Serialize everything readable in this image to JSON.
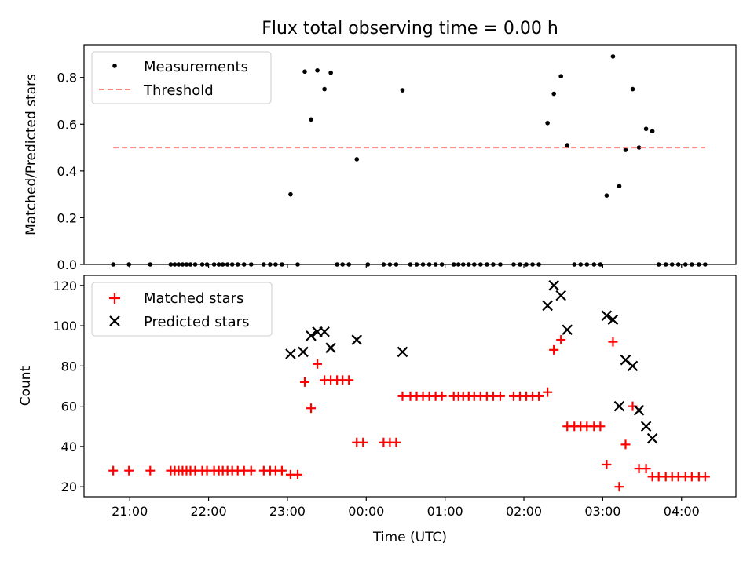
{
  "figure": {
    "title": "Flux total observing time = 0.00 h"
  },
  "chart_data": [
    {
      "type": "scatter",
      "ylabel": "Matched/Predicted stars",
      "xlim": [
        20.42,
        28.69
      ],
      "ylim": [
        0,
        0.94
      ],
      "yticks": [
        0.0,
        0.2,
        0.4,
        0.6,
        0.8
      ],
      "yticklabels": [
        "0.0",
        "0.2",
        "0.4",
        "0.6",
        "0.8"
      ],
      "grid": false,
      "legend_position": "upper-left",
      "series": [
        {
          "name": "Measurements",
          "marker": "dot",
          "color": "#000000",
          "points": [
            [
              20.79,
              0
            ],
            [
              20.99,
              0
            ],
            [
              21.26,
              0
            ],
            [
              21.52,
              0
            ],
            [
              21.57,
              0
            ],
            [
              21.62,
              0
            ],
            [
              21.67,
              0
            ],
            [
              21.72,
              0
            ],
            [
              21.77,
              0
            ],
            [
              21.83,
              0
            ],
            [
              21.92,
              0
            ],
            [
              21.98,
              0
            ],
            [
              22.07,
              0
            ],
            [
              22.13,
              0
            ],
            [
              22.18,
              0
            ],
            [
              22.24,
              0
            ],
            [
              22.3,
              0
            ],
            [
              22.37,
              0
            ],
            [
              22.45,
              0
            ],
            [
              22.54,
              0
            ],
            [
              22.7,
              0
            ],
            [
              22.78,
              0
            ],
            [
              22.85,
              0
            ],
            [
              22.93,
              0
            ],
            [
              23.04,
              0.3
            ],
            [
              23.13,
              0
            ],
            [
              23.22,
              0.825
            ],
            [
              23.3,
              0.62
            ],
            [
              23.38,
              0.83
            ],
            [
              23.47,
              0.75
            ],
            [
              23.55,
              0.82
            ],
            [
              23.63,
              0
            ],
            [
              23.7,
              0
            ],
            [
              23.78,
              0
            ],
            [
              23.88,
              0.45
            ],
            [
              24.02,
              0
            ],
            [
              24.22,
              0
            ],
            [
              24.3,
              0
            ],
            [
              24.38,
              0
            ],
            [
              24.46,
              0.745
            ],
            [
              24.56,
              0
            ],
            [
              24.64,
              0
            ],
            [
              24.72,
              0
            ],
            [
              24.8,
              0
            ],
            [
              24.88,
              0
            ],
            [
              24.96,
              0
            ],
            [
              25.11,
              0
            ],
            [
              25.17,
              0
            ],
            [
              25.23,
              0
            ],
            [
              25.3,
              0
            ],
            [
              25.37,
              0
            ],
            [
              25.45,
              0
            ],
            [
              25.53,
              0
            ],
            [
              25.61,
              0
            ],
            [
              25.7,
              0
            ],
            [
              25.87,
              0
            ],
            [
              25.95,
              0
            ],
            [
              26.03,
              0
            ],
            [
              26.11,
              0
            ],
            [
              26.19,
              0
            ],
            [
              26.3,
              0.605
            ],
            [
              26.38,
              0.73
            ],
            [
              26.47,
              0.805
            ],
            [
              26.55,
              0.51
            ],
            [
              26.64,
              0
            ],
            [
              26.72,
              0
            ],
            [
              26.8,
              0
            ],
            [
              26.89,
              0
            ],
            [
              26.97,
              0
            ],
            [
              27.05,
              0.295
            ],
            [
              27.13,
              0.89
            ],
            [
              27.21,
              0.335
            ],
            [
              27.29,
              0.49
            ],
            [
              27.38,
              0.75
            ],
            [
              27.46,
              0.5
            ],
            [
              27.55,
              0.58
            ],
            [
              27.63,
              0.57
            ],
            [
              27.71,
              0
            ],
            [
              27.8,
              0
            ],
            [
              27.88,
              0
            ],
            [
              27.96,
              0
            ],
            [
              28.05,
              0
            ],
            [
              28.13,
              0
            ],
            [
              28.22,
              0
            ],
            [
              28.3,
              0
            ]
          ]
        },
        {
          "name": "Threshold",
          "marker": "dashed-line",
          "color": "#ff7f7f",
          "points": [
            [
              20.79,
              0.5
            ],
            [
              28.3,
              0.5
            ]
          ]
        }
      ]
    },
    {
      "type": "scatter",
      "xlabel": "Time (UTC)",
      "ylabel": "Count",
      "xlim": [
        20.42,
        28.69
      ],
      "ylim": [
        15,
        125
      ],
      "yticks": [
        20,
        40,
        60,
        80,
        100,
        120
      ],
      "yticklabels": [
        "20",
        "40",
        "60",
        "80",
        "100",
        "120"
      ],
      "xticks": [
        21,
        22,
        23,
        24,
        25,
        26,
        27,
        28
      ],
      "xticklabels": [
        "21:00",
        "22:00",
        "23:00",
        "00:00",
        "01:00",
        "02:00",
        "03:00",
        "04:00"
      ],
      "grid": false,
      "legend_position": "upper-left",
      "series": [
        {
          "name": "Matched stars",
          "marker": "plus",
          "color": "#ff0000",
          "points": [
            [
              20.79,
              28
            ],
            [
              20.99,
              28
            ],
            [
              21.26,
              28
            ],
            [
              21.52,
              28
            ],
            [
              21.57,
              28
            ],
            [
              21.62,
              28
            ],
            [
              21.67,
              28
            ],
            [
              21.72,
              28
            ],
            [
              21.77,
              28
            ],
            [
              21.83,
              28
            ],
            [
              21.92,
              28
            ],
            [
              21.98,
              28
            ],
            [
              22.07,
              28
            ],
            [
              22.13,
              28
            ],
            [
              22.18,
              28
            ],
            [
              22.24,
              28
            ],
            [
              22.3,
              28
            ],
            [
              22.37,
              28
            ],
            [
              22.45,
              28
            ],
            [
              22.54,
              28
            ],
            [
              22.7,
              28
            ],
            [
              22.78,
              28
            ],
            [
              22.85,
              28
            ],
            [
              22.93,
              28
            ],
            [
              23.04,
              26
            ],
            [
              23.13,
              26
            ],
            [
              23.22,
              72
            ],
            [
              23.3,
              59
            ],
            [
              23.38,
              81
            ],
            [
              23.47,
              73
            ],
            [
              23.55,
              73
            ],
            [
              23.63,
              73
            ],
            [
              23.7,
              73
            ],
            [
              23.78,
              73
            ],
            [
              23.88,
              42
            ],
            [
              23.96,
              42
            ],
            [
              24.22,
              42
            ],
            [
              24.3,
              42
            ],
            [
              24.38,
              42
            ],
            [
              24.46,
              65
            ],
            [
              24.56,
              65
            ],
            [
              24.64,
              65
            ],
            [
              24.72,
              65
            ],
            [
              24.8,
              65
            ],
            [
              24.88,
              65
            ],
            [
              24.96,
              65
            ],
            [
              25.11,
              65
            ],
            [
              25.17,
              65
            ],
            [
              25.23,
              65
            ],
            [
              25.3,
              65
            ],
            [
              25.37,
              65
            ],
            [
              25.45,
              65
            ],
            [
              25.53,
              65
            ],
            [
              25.61,
              65
            ],
            [
              25.7,
              65
            ],
            [
              25.87,
              65
            ],
            [
              25.95,
              65
            ],
            [
              26.03,
              65
            ],
            [
              26.11,
              65
            ],
            [
              26.19,
              65
            ],
            [
              26.3,
              67
            ],
            [
              26.38,
              88
            ],
            [
              26.47,
              93
            ],
            [
              26.55,
              50
            ],
            [
              26.64,
              50
            ],
            [
              26.72,
              50
            ],
            [
              26.8,
              50
            ],
            [
              26.89,
              50
            ],
            [
              26.97,
              50
            ],
            [
              27.05,
              31
            ],
            [
              27.13,
              92
            ],
            [
              27.21,
              20
            ],
            [
              27.29,
              41
            ],
            [
              27.38,
              60
            ],
            [
              27.46,
              29
            ],
            [
              27.55,
              29
            ],
            [
              27.63,
              25
            ],
            [
              27.71,
              25
            ],
            [
              27.8,
              25
            ],
            [
              27.88,
              25
            ],
            [
              27.96,
              25
            ],
            [
              28.05,
              25
            ],
            [
              28.13,
              25
            ],
            [
              28.22,
              25
            ],
            [
              28.3,
              25
            ]
          ]
        },
        {
          "name": "Predicted stars",
          "marker": "x",
          "color": "#000000",
          "points": [
            [
              23.04,
              86
            ],
            [
              23.2,
              87
            ],
            [
              23.3,
              95
            ],
            [
              23.38,
              97
            ],
            [
              23.47,
              97
            ],
            [
              23.55,
              89
            ],
            [
              23.88,
              93
            ],
            [
              24.46,
              87
            ],
            [
              26.3,
              110
            ],
            [
              26.38,
              120
            ],
            [
              26.47,
              115
            ],
            [
              26.55,
              98
            ],
            [
              27.05,
              105
            ],
            [
              27.13,
              103
            ],
            [
              27.21,
              60
            ],
            [
              27.29,
              83
            ],
            [
              27.38,
              80
            ],
            [
              27.46,
              58
            ],
            [
              27.55,
              50
            ],
            [
              27.63,
              44
            ]
          ]
        }
      ]
    }
  ]
}
